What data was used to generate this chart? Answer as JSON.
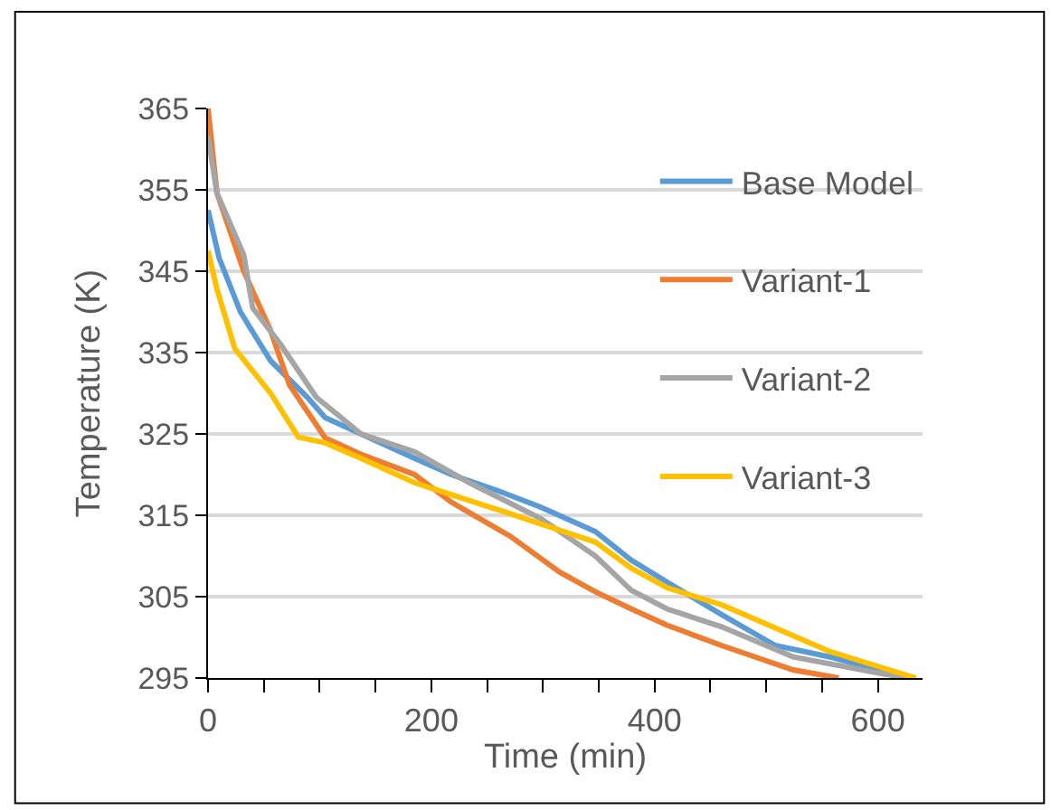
{
  "chart_data": {
    "type": "line",
    "xlabel": "Time (min)",
    "ylabel": "Temperature (K)",
    "xlim": [
      0,
      640
    ],
    "ylim": [
      295,
      365
    ],
    "xticks": [
      0,
      {
        "value": 50,
        "label": null
      },
      {
        "value": 100,
        "label": null
      },
      {
        "value": 150,
        "label": null
      },
      200,
      {
        "value": 250,
        "label": null
      },
      {
        "value": 300,
        "label": null
      },
      {
        "value": 350,
        "label": null
      },
      400,
      {
        "value": 450,
        "label": null
      },
      {
        "value": 500,
        "label": null
      },
      {
        "value": 550,
        "label": null
      },
      600
    ],
    "yticks": [
      295,
      305,
      315,
      325,
      335,
      345,
      355,
      365
    ],
    "grid": "y",
    "legend": "right",
    "marker": "none",
    "line_style": "solid",
    "series": [
      {
        "name": "Base Model",
        "color": "#5b9bd5",
        "x": [
          0,
          10,
          29,
          56,
          89,
          105,
          137,
          185,
          218,
          260,
          298,
          347,
          379,
          411,
          460,
          508,
          560,
          597,
          620
        ],
        "values": [
          352.5,
          346.6,
          340,
          334,
          329.5,
          327,
          325,
          322,
          320,
          318,
          316,
          313,
          309.5,
          306.8,
          302.8,
          299,
          297.5,
          296.1,
          295
        ]
      },
      {
        "name": "Variant-1",
        "color": "#ed7d31",
        "x": [
          0,
          8,
          32,
          56,
          73,
          105,
          137,
          185,
          218,
          271,
          315,
          347,
          379,
          411,
          460,
          524,
          565
        ],
        "values": [
          365,
          354.6,
          345,
          337.7,
          331,
          324.5,
          322.5,
          320,
          316.6,
          312.4,
          308,
          305.6,
          303.5,
          301.5,
          299,
          296,
          295
        ]
      },
      {
        "name": "Variant-2",
        "color": "#a5a5a5",
        "x": [
          0,
          8,
          32,
          40,
          65,
          97,
          121,
          137,
          185,
          234,
          298,
          347,
          379,
          411,
          460,
          524,
          605,
          630
        ],
        "values": [
          361.5,
          354.6,
          347,
          340.5,
          336,
          329.5,
          326.8,
          325,
          322.8,
          319,
          314.6,
          310,
          305.8,
          303.5,
          301.3,
          297.6,
          295.5,
          295
        ]
      },
      {
        "name": "Variant-3",
        "color": "#ffc000",
        "x": [
          0,
          8,
          24,
          56,
          81,
          105,
          137,
          185,
          266,
          347,
          379,
          411,
          460,
          492,
          556,
          634
        ],
        "values": [
          347.5,
          342.8,
          335.5,
          330,
          324.6,
          323.9,
          322,
          319,
          315.4,
          311.7,
          308.5,
          306.1,
          304,
          302.1,
          298.3,
          295
        ]
      }
    ]
  }
}
